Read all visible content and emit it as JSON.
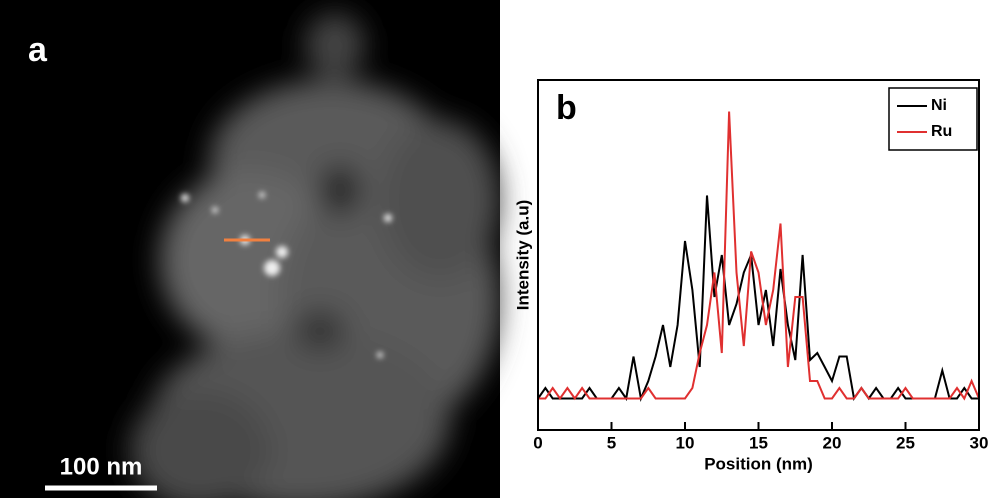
{
  "image_panel": {
    "label": "a",
    "scale_bar": "100 nm"
  },
  "chart_data": {
    "type": "line",
    "panel_label": "b",
    "x_label": "Position (nm)",
    "y_label": "Intensity (a.u)",
    "x": [
      0,
      0.5,
      1,
      1.5,
      2,
      2.5,
      3,
      3.5,
      4,
      4.5,
      5,
      5.5,
      6,
      6.5,
      7,
      7.5,
      8,
      8.5,
      9,
      9.5,
      10,
      10.5,
      11,
      11.5,
      12,
      12.5,
      13,
      13.5,
      14,
      14.5,
      15,
      15.5,
      16,
      16.5,
      17,
      17.5,
      18,
      18.5,
      19,
      19.5,
      20,
      20.5,
      21,
      21.5,
      22,
      22.5,
      23,
      23.5,
      24,
      24.5,
      25,
      25.5,
      26,
      26.5,
      27,
      27.5,
      28,
      28.5,
      29,
      29.5,
      30
    ],
    "series": [
      {
        "name": "Ni",
        "color": "#000000",
        "values": [
          9,
          12,
          9,
          9,
          9,
          9,
          9,
          12,
          9,
          9,
          9,
          12,
          9,
          21,
          9,
          14,
          21,
          30,
          18,
          30,
          54,
          40,
          18,
          67,
          38,
          50,
          30,
          36,
          45,
          50,
          30,
          40,
          24,
          46,
          30,
          20,
          50,
          20,
          22,
          18,
          14,
          21,
          21,
          9,
          12,
          9,
          12,
          9,
          9,
          12,
          9,
          9,
          9,
          9,
          9,
          17,
          9,
          9,
          12,
          9,
          9
        ]
      },
      {
        "name": "Ru",
        "color": "#e03030",
        "values": [
          9,
          9,
          12,
          9,
          12,
          9,
          12,
          9,
          9,
          9,
          9,
          9,
          9,
          9,
          9,
          12,
          9,
          9,
          9,
          9,
          9,
          12,
          22,
          30,
          45,
          22,
          91,
          45,
          24,
          51,
          45,
          30,
          40,
          59,
          18,
          38,
          38,
          14,
          14,
          9,
          9,
          12,
          9,
          9,
          12,
          9,
          9,
          9,
          9,
          9,
          12,
          9,
          9,
          9,
          9,
          9,
          9,
          12,
          9,
          14,
          9
        ]
      }
    ],
    "xlim": [
      0,
      30
    ],
    "xticks": [
      0,
      5,
      10,
      15,
      20,
      25,
      30
    ],
    "ylim": [
      0,
      100
    ],
    "yticks": [],
    "legend": "top-right"
  }
}
